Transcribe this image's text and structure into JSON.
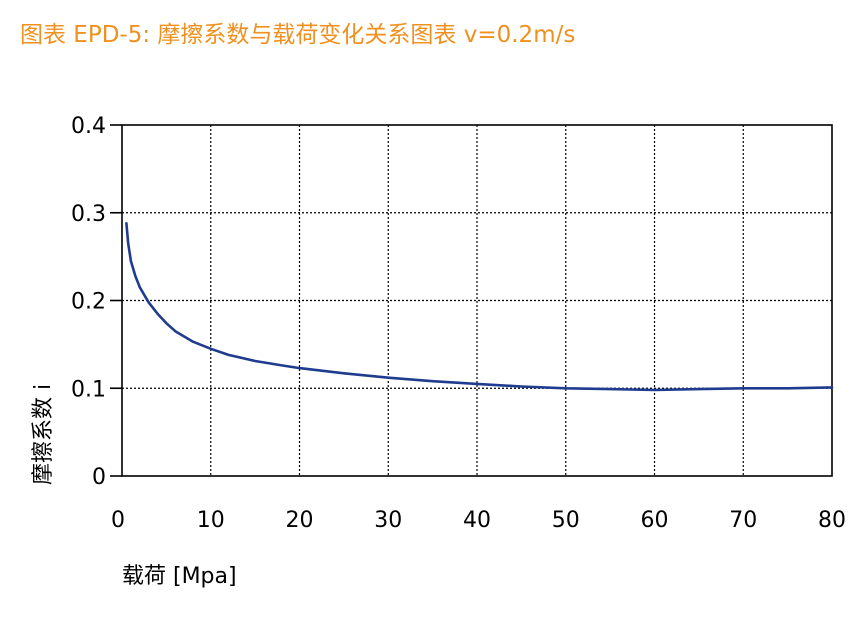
{
  "title": "图表 EPD-5: 摩擦系数与载荷变化关系图表 v=0.2m/s",
  "colors": {
    "title": "#f0901e",
    "line": "#1f3c8f",
    "grid": "#000000",
    "frame": "#000000"
  },
  "chart_data": {
    "type": "line",
    "title": "",
    "xlabel": "载荷 [Mpa]",
    "ylabel": "摩擦系数 i",
    "xlim": [
      0,
      80
    ],
    "ylim": [
      0,
      0.4
    ],
    "xticks": [
      0,
      10,
      20,
      30,
      40,
      50,
      60,
      70,
      80
    ],
    "yticks": [
      0,
      0.1,
      0.2,
      0.3,
      0.4
    ],
    "xtick_labels": [
      "0",
      "10",
      "20",
      "30",
      "40",
      "50",
      "60",
      "70",
      "80"
    ],
    "ytick_labels": [
      "0",
      "0.1",
      "0.2",
      "0.3",
      "0.4"
    ],
    "grid": true,
    "series": [
      {
        "name": "",
        "x": [
          0.5,
          0.7,
          1,
          1.5,
          2,
          3,
          4,
          5,
          6,
          8,
          10,
          12,
          15,
          18,
          20,
          25,
          30,
          35,
          40,
          45,
          50,
          55,
          60,
          65,
          70,
          75,
          80
        ],
        "y": [
          0.288,
          0.265,
          0.245,
          0.228,
          0.215,
          0.198,
          0.185,
          0.174,
          0.165,
          0.153,
          0.145,
          0.138,
          0.131,
          0.126,
          0.123,
          0.117,
          0.112,
          0.108,
          0.105,
          0.102,
          0.1,
          0.099,
          0.098,
          0.099,
          0.1,
          0.1,
          0.101
        ]
      }
    ]
  }
}
